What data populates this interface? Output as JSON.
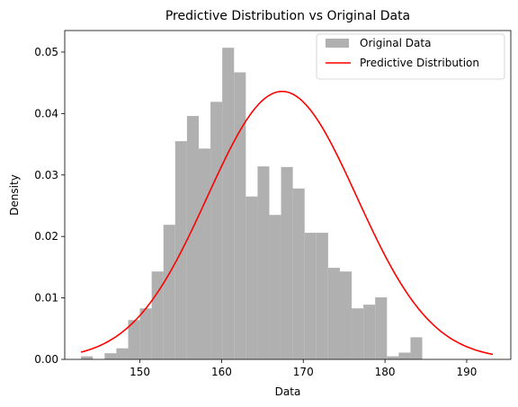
{
  "chart_data": {
    "type": "histogram",
    "title": "Predictive Distribution vs Original Data",
    "xlabel": "Data",
    "ylabel": "Density",
    "xlim": [
      140.8,
      195.4
    ],
    "ylim": [
      0,
      0.0535
    ],
    "xticks": [
      150,
      160,
      170,
      180,
      190
    ],
    "yticks": [
      0.0,
      0.01,
      0.02,
      0.03,
      0.04,
      0.05
    ],
    "ytick_labels": [
      "0.00",
      "0.01",
      "0.02",
      "0.03",
      "0.04",
      "0.05"
    ],
    "grid": false,
    "legend_position": "top-right",
    "series": [
      {
        "name": "Original Data",
        "kind": "histogram",
        "color": "#b0b0b0",
        "bin_edges": [
          142.8,
          144.24,
          145.68,
          147.12,
          148.56,
          150.0,
          151.44,
          152.88,
          154.32,
          155.76,
          157.2,
          158.64,
          160.08,
          161.52,
          162.96,
          164.4,
          165.84,
          167.28,
          168.72,
          170.16,
          171.6,
          173.04,
          174.48,
          175.92,
          177.36,
          178.8,
          180.24,
          181.68,
          183.12,
          184.56,
          186.0,
          187.44,
          188.88,
          190.32,
          191.76,
          193.2
        ],
        "values": [
          0.0005,
          0.0,
          0.001,
          0.0018,
          0.0064,
          0.0083,
          0.0143,
          0.0219,
          0.0355,
          0.0396,
          0.0343,
          0.0419,
          0.0507,
          0.0467,
          0.0265,
          0.0314,
          0.0235,
          0.0313,
          0.0278,
          0.0206,
          0.0206,
          0.0149,
          0.0143,
          0.0083,
          0.0089,
          0.0101,
          0.0005,
          0.0011,
          0.0036,
          0.0,
          0.0,
          0.0,
          0.0,
          0.0,
          0.0
        ]
      },
      {
        "name": "Predictive Distribution",
        "kind": "line",
        "color": "#ff0000",
        "distribution": "normal",
        "mean": 167.4,
        "std": 9.15,
        "x_range": [
          142.8,
          193.2
        ]
      }
    ]
  }
}
